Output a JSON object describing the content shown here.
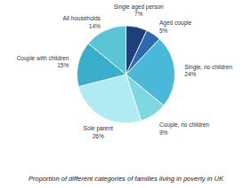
{
  "chart_data": {
    "type": "pie",
    "title": "Proportion of different categories of families living in poverty in UK",
    "categories": [
      "Single aged person",
      "Aged couple",
      "Single, no children",
      "Couple, no children",
      "Sole parent",
      "Couple with children",
      "All households"
    ],
    "values": [
      7,
      5,
      24,
      9,
      26,
      15,
      14
    ],
    "value_labels": [
      "7%",
      "5%",
      "24%",
      "9%",
      "26%",
      "15%",
      "14%"
    ],
    "colors": [
      "#1e3f7a",
      "#2d6ab0",
      "#4ab8d8",
      "#7dd8e0",
      "#b0eaf2",
      "#3baecb",
      "#5ac5d5"
    ],
    "data_labels": true
  }
}
